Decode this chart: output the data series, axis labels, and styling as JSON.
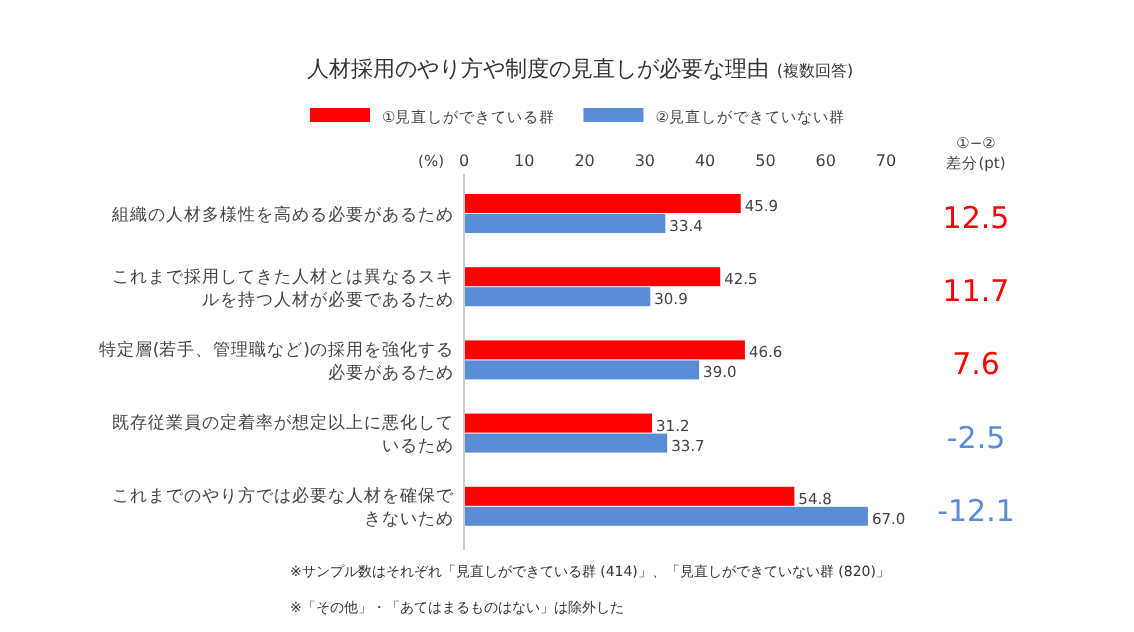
{
  "chart_data": {
    "type": "bar",
    "orientation": "horizontal",
    "title": "人材採用のやり方や制度の見直しが必要な理由",
    "subtitle": "(複数回答)",
    "xlabel": "(%)",
    "categories": [
      "組織の人材多様性を高める必要があるため",
      "これまで採用してきた人材とは異なるスキルを持つ人材が必要であるため",
      "特定層(若手、管理職など)の採用を強化する必要があるため",
      "既存従業員の定着率が想定以上に悪化しているため",
      "これまでのやり方では必要な人材を確保できないため"
    ],
    "series": [
      {
        "name": "①見直しができている群",
        "color": "#ff0000",
        "values": [
          45.9,
          42.5,
          46.6,
          31.2,
          54.8
        ],
        "value_labels": [
          "45.9",
          "42.5",
          "46.6",
          "31.2",
          "54.8"
        ]
      },
      {
        "name": "②見直しができていない群",
        "color": "#5b8dd6",
        "values": [
          33.4,
          30.9,
          39.0,
          33.7,
          67.0
        ],
        "value_labels": [
          "33.4",
          "30.9",
          "39.0",
          "33.7",
          "67.0"
        ]
      }
    ],
    "xlim": [
      0,
      70
    ],
    "xticks": [
      0,
      10,
      20,
      30,
      40,
      50,
      60,
      70
    ],
    "legend": "top",
    "grid": false,
    "annotations": [
      "①−②",
      "差分(pt)",
      "12.5",
      "11.7",
      "7.6",
      "-2.5",
      "-12.1",
      "※サンプル数はそれぞれ「見直しができている群 (414)」、「見直しができていない群 (820)」",
      "※「その他」・「あてはまるものはない」は除外した"
    ]
  }
}
